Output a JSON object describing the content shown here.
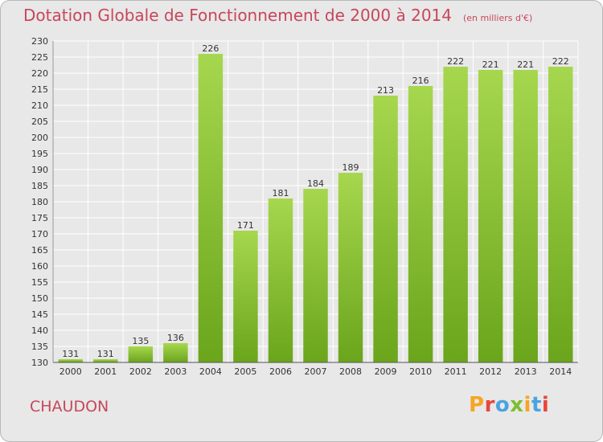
{
  "header": {
    "title": "Dotation Globale de Fonctionnement de 2000 à 2014",
    "subtitle": "(en milliers d'€)"
  },
  "footer": {
    "city": "CHAUDON",
    "logo_text": "Proxiti"
  },
  "colors": {
    "title": "#c8465a",
    "bar_light": "#a6d74e",
    "bar_dark": "#6aa51c",
    "grid": "#ffffff",
    "logo": [
      "#f5a623",
      "#e8463c",
      "#4aa3df",
      "#7dbf2f",
      "#f5a623",
      "#4aa3df",
      "#e8463c"
    ]
  },
  "chart_data": {
    "type": "bar",
    "categories": [
      "2000",
      "2001",
      "2002",
      "2003",
      "2004",
      "2005",
      "2006",
      "2007",
      "2008",
      "2009",
      "2010",
      "2011",
      "2012",
      "2013",
      "2014"
    ],
    "values": [
      131,
      131,
      135,
      136,
      226,
      171,
      181,
      184,
      189,
      213,
      216,
      222,
      221,
      221,
      222
    ],
    "ylim": [
      130,
      230
    ],
    "ytick_step": 5,
    "grid": true
  }
}
